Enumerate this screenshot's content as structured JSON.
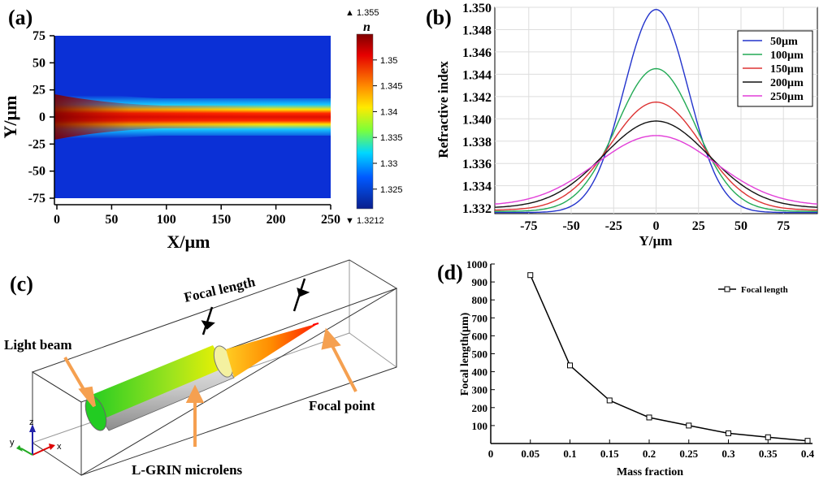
{
  "panels": {
    "a": "(a)",
    "b": "(b)",
    "c": "(c)",
    "d": "(d)"
  },
  "chart_data": [
    {
      "id": "a",
      "type": "heatmap",
      "xlabel": "X/µm",
      "ylabel": "Y/µm",
      "xlim": [
        0,
        250
      ],
      "ylim": [
        -75,
        75
      ],
      "xticks": [
        "0",
        "50",
        "100",
        "150",
        "200",
        "250"
      ],
      "yticks": [
        "75",
        "50",
        "25",
        "0",
        "-25",
        "-50",
        "-75"
      ],
      "colorbar": {
        "title": "n",
        "max_label": "▲ 1.355",
        "min_label": "▼ 1.3212",
        "range": [
          1.3212,
          1.355
        ],
        "ticks": [
          "1.35",
          "1.345",
          "1.34",
          "1.335",
          "1.33",
          "1.325"
        ]
      }
    },
    {
      "id": "b",
      "type": "line",
      "xlabel": "Y/µm",
      "ylabel": "Refractive index",
      "xlim": [
        -95,
        95
      ],
      "ylim": [
        1.3315,
        1.35
      ],
      "xticks": [
        "-75",
        "-50",
        "-25",
        "0",
        "25",
        "50",
        "75"
      ],
      "yticks": [
        "1.350",
        "1.348",
        "1.346",
        "1.344",
        "1.342",
        "1.340",
        "1.338",
        "1.336",
        "1.334",
        "1.332"
      ],
      "legend_position": "top-right",
      "series": [
        {
          "name": "50µm",
          "color": "#2233cc",
          "base": 1.3316,
          "peak": 1.3498,
          "sigma": 19
        },
        {
          "name": "100µm",
          "color": "#22aa55",
          "base": 1.3317,
          "peak": 1.3445,
          "sigma": 23
        },
        {
          "name": "150µm",
          "color": "#dd3333",
          "base": 1.3318,
          "peak": 1.3415,
          "sigma": 27
        },
        {
          "name": "200µm",
          "color": "#111111",
          "base": 1.332,
          "peak": 1.3398,
          "sigma": 31
        },
        {
          "name": "250µm",
          "color": "#e23fd8",
          "base": 1.3322,
          "peak": 1.3385,
          "sigma": 35
        }
      ]
    },
    {
      "id": "d",
      "type": "line",
      "xlabel": "Mass fraction",
      "ylabel": "Focal length(µm)",
      "xlim": [
        0,
        0.4
      ],
      "ylim": [
        0,
        1000
      ],
      "xticks": [
        "0",
        "0.05",
        "0.1",
        "0.15",
        "0.2",
        "0.25",
        "0.3",
        "0.35",
        "0.4"
      ],
      "yticks": [
        "1000",
        "900",
        "800",
        "700",
        "600",
        "500",
        "400",
        "300",
        "200",
        "100",
        "0"
      ],
      "legend_position": "top-right",
      "series": [
        {
          "name": "Focal length",
          "x": [
            0.05,
            0.1,
            0.15,
            0.2,
            0.25,
            0.3,
            0.35,
            0.4
          ],
          "y": [
            938,
            435,
            240,
            145,
            100,
            57,
            35,
            15
          ]
        }
      ]
    }
  ],
  "diagram_c": {
    "focal_length": "Focal length",
    "light_beam": "Light beam",
    "focal_point": "Focal point",
    "microlens": "L-GRIN microlens",
    "axis_x": "x",
    "axis_y": "y",
    "axis_z": "z"
  },
  "colors": {
    "accent": "#f4a460"
  }
}
